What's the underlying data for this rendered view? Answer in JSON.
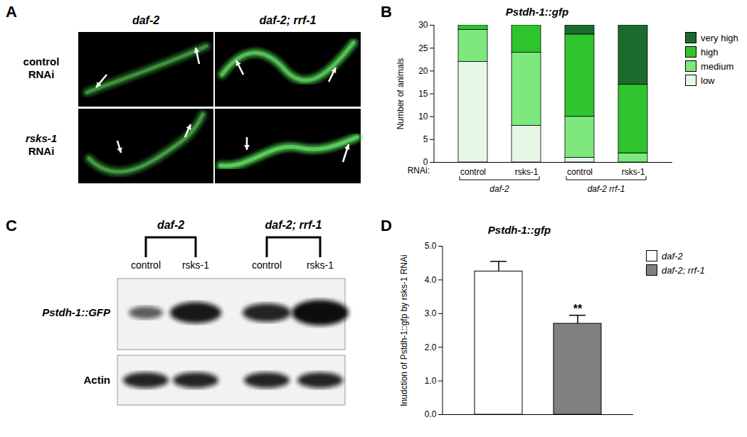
{
  "panel_labels": [
    "A",
    "B",
    "C",
    "D"
  ],
  "panel_a": {
    "column_labels": [
      "daf-2",
      "daf-2; rrf-1"
    ],
    "row_labels": [
      [
        "control",
        "RNAi"
      ],
      [
        "rsks-1",
        "RNAi"
      ]
    ]
  },
  "panel_c": {
    "group_labels": [
      "daf-2",
      "daf-2; rrf-1"
    ],
    "lane_labels": [
      "control",
      "rsks-1",
      "control",
      "rsks-1"
    ],
    "row_labels": [
      "Pstdh-1::GFP",
      "Actin"
    ]
  },
  "chart_data": [
    {
      "type": "bar",
      "stacked": true,
      "title": "Pstdh-1::gfp",
      "y_label": "Number of animals",
      "x_label": "RNAi:",
      "categories": [
        "control",
        "rsks-1",
        "control",
        "rsks-1"
      ],
      "groups": [
        "daf-2",
        "daf-2",
        "daf-2 rrf-1",
        "daf-2 rrf-1"
      ],
      "ylim": [
        0,
        30
      ],
      "yticks": [
        0,
        5,
        10,
        15,
        20,
        25,
        30
      ],
      "legend": "right",
      "series": [
        {
          "name": "low",
          "color": "#e6f7e6",
          "values": [
            22,
            8,
            1,
            0
          ]
        },
        {
          "name": "medium",
          "color": "#7ee87e",
          "values": [
            7,
            16,
            9,
            2
          ]
        },
        {
          "name": "high",
          "color": "#2ec42e",
          "values": [
            1,
            6,
            18,
            15
          ]
        },
        {
          "name": "very high",
          "color": "#1d6b2c",
          "values": [
            0,
            0,
            2,
            13
          ]
        }
      ]
    },
    {
      "type": "bar",
      "title": "Pstdh-1::gfp",
      "y_label": "Inudction of Pstdh-1::gfp by rsks-1 RNAi",
      "categories": [
        "daf-2",
        "daf-2; rrf-1"
      ],
      "values": [
        4.25,
        2.7
      ],
      "error": [
        0.3,
        0.25
      ],
      "colors": [
        "#ffffff",
        "#808080"
      ],
      "ylim": [
        0,
        5
      ],
      "yticks": [
        0,
        1,
        2,
        3,
        4,
        5
      ],
      "tick_labels": "y",
      "legend": "right",
      "annotations": [
        {
          "category": "daf-2; rrf-1",
          "text": "**"
        }
      ]
    }
  ]
}
